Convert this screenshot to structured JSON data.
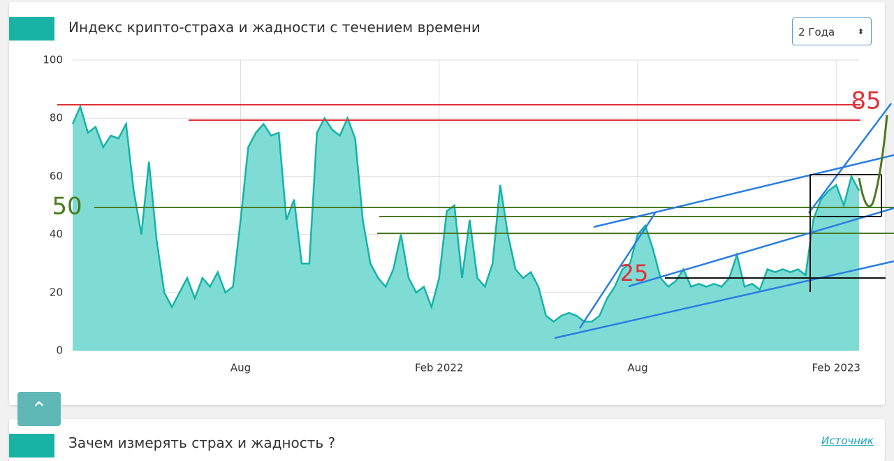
{
  "header": {
    "title": "Индекс крипто-страха и жадности с течением времени",
    "period": "2 Года"
  },
  "next_section": {
    "title": "Зачем измерять страх и жадность ?",
    "link": "Источник"
  },
  "annotations": [
    "85",
    "50",
    "25"
  ],
  "chart_data": {
    "type": "area",
    "color": "#14b3a8",
    "fill": "#7fdcd4",
    "grid": true,
    "categories": [
      null,
      null,
      null,
      null,
      null,
      null,
      null,
      null,
      null,
      null,
      null,
      null,
      null,
      null,
      null,
      null,
      null,
      null,
      null,
      null,
      null,
      null,
      "Aug",
      null,
      null,
      null,
      null,
      null,
      null,
      null,
      null,
      null,
      null,
      null,
      null,
      null,
      null,
      null,
      null,
      null,
      null,
      null,
      null,
      null,
      null,
      null,
      null,
      null,
      "Feb 2022",
      null,
      null,
      null,
      null,
      null,
      null,
      null,
      null,
      null,
      null,
      null,
      null,
      null,
      null,
      null,
      null,
      null,
      null,
      null,
      null,
      null,
      null,
      null,
      null,
      null,
      "Aug",
      null,
      null,
      null,
      null,
      null,
      null,
      null,
      null,
      null,
      null,
      null,
      null,
      null,
      null,
      null,
      null,
      null,
      null,
      null,
      null,
      null,
      null,
      null,
      null,
      null,
      "Feb 2023",
      null,
      null,
      null
    ],
    "values": [
      78,
      84,
      75,
      77,
      70,
      74,
      73,
      78,
      55,
      40,
      65,
      38,
      20,
      15,
      20,
      25,
      18,
      25,
      22,
      27,
      20,
      22,
      45,
      70,
      75,
      78,
      74,
      75,
      45,
      52,
      30,
      30,
      75,
      80,
      76,
      74,
      80,
      73,
      45,
      30,
      25,
      22,
      28,
      40,
      25,
      20,
      22,
      15,
      25,
      48,
      50,
      25,
      45,
      25,
      22,
      30,
      57,
      40,
      28,
      25,
      27,
      22,
      12,
      10,
      12,
      13,
      12,
      10,
      10,
      12,
      18,
      22,
      28,
      30,
      40,
      43,
      35,
      25,
      22,
      24,
      28,
      22,
      23,
      22,
      23,
      22,
      25,
      33,
      22,
      23,
      21,
      28,
      27,
      28,
      27,
      28,
      26,
      45,
      52,
      55,
      57,
      50,
      60,
      55
    ],
    "ylim": [
      0,
      100
    ],
    "yticks": [
      0,
      20,
      40,
      60,
      80,
      100
    ]
  }
}
